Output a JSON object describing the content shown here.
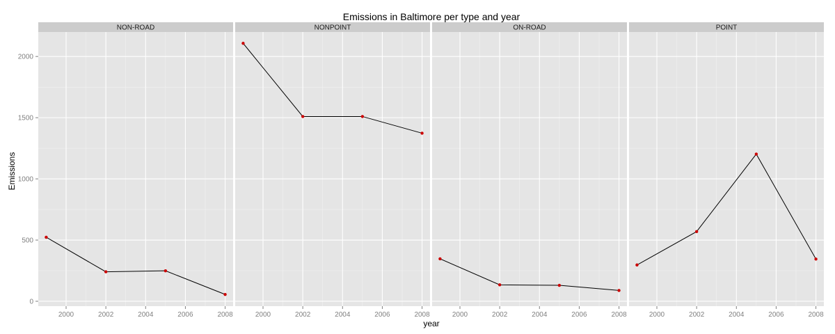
{
  "chart_data": {
    "type": "line",
    "title": "Emissions in Baltimore per type and year",
    "xlabel": "year",
    "ylabel": "Emissions",
    "xlim": [
      1998.6,
      2008.4
    ],
    "ylim": [
      -40,
      2200
    ],
    "x_ticks": [
      2000,
      2002,
      2004,
      2006,
      2008
    ],
    "y_ticks": [
      0,
      500,
      1000,
      1500,
      2000
    ],
    "x_tick_labels": [
      "2000",
      "2002",
      "2004",
      "2006",
      "2008"
    ],
    "y_tick_labels": [
      "0",
      "500",
      "1000",
      "1500",
      "2000"
    ],
    "grid": true,
    "line_color": "#000000",
    "point_color": "#cc0000",
    "panel_background": "#e5e5e5",
    "strip_background": "#cccccc",
    "x": [
      1999,
      2002,
      2005,
      2008
    ],
    "facets": [
      {
        "name": "NON-ROAD",
        "values": [
          522.9,
          240.8,
          248.9,
          55.8
        ]
      },
      {
        "name": "NONPOINT",
        "values": [
          2107.6,
          1509.5,
          1509.5,
          1373.2
        ]
      },
      {
        "name": "ON-ROAD",
        "values": [
          346.8,
          134.3,
          130.4,
          88.3
        ]
      },
      {
        "name": "POINT",
        "values": [
          296.8,
          569.3,
          1202.5,
          344.98
        ]
      }
    ]
  }
}
